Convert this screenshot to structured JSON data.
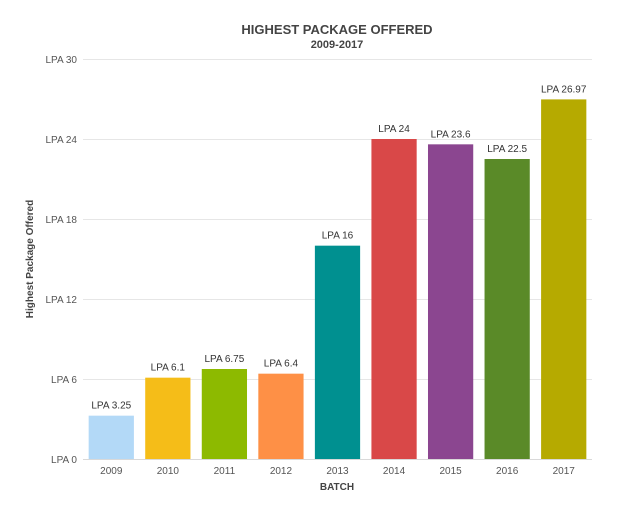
{
  "chart_data": {
    "type": "bar",
    "title": "HIGHEST PACKAGE OFFERED",
    "subtitle": "2009-2017",
    "xlabel": "BATCH",
    "ylabel": "Highest Package Offered",
    "ylim": [
      0,
      30
    ],
    "yticks": [
      0,
      6,
      12,
      18,
      24,
      30
    ],
    "ytick_prefix": "LPA",
    "categories": [
      "2009",
      "2010",
      "2011",
      "2012",
      "2013",
      "2014",
      "2015",
      "2016",
      "2017"
    ],
    "values": [
      3.25,
      6.1,
      6.75,
      6.4,
      16,
      24,
      23.6,
      22.5,
      26.97
    ],
    "data_labels": [
      "LPA 3.25",
      "LPA 6.1",
      "LPA 6.75",
      "LPA 6.4",
      "LPA 16",
      "LPA 24",
      "LPA 23.6",
      "LPA 22.5",
      "LPA 26.97"
    ],
    "colors": [
      "#b3d9f7",
      "#f5bd18",
      "#8dba00",
      "#fe9046",
      "#009090",
      "#d94848",
      "#8b4690",
      "#5a8a28",
      "#b6aa00"
    ],
    "grid": true,
    "legend": "none"
  }
}
